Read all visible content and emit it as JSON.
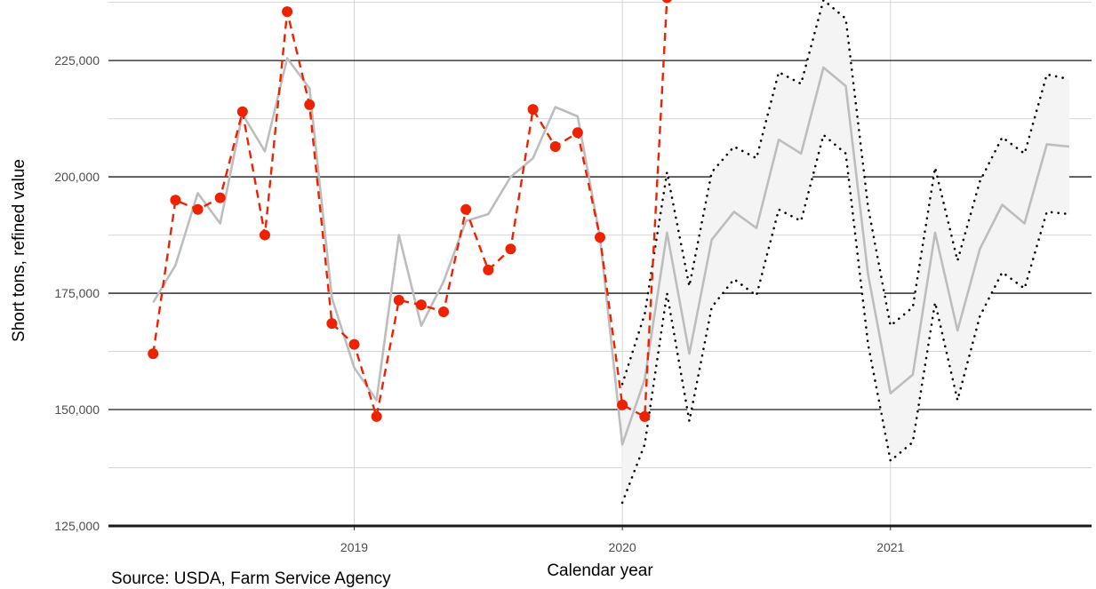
{
  "chart_data": {
    "type": "line",
    "xlabel": "Calendar year",
    "ylabel": "Short tons, refined value",
    "source": "Source: USDA, Farm Service Agency",
    "x_ticks": [
      "2019",
      "2020",
      "2021"
    ],
    "y_ticks": [
      "125,000",
      "150,000",
      "175,000",
      "200,000",
      "225,000"
    ],
    "x_range": [
      "2018-02",
      "2021-10"
    ],
    "ylim": [
      125000,
      238000
    ],
    "grid": true,
    "colors": {
      "actual": "#ee2200",
      "fitted": "#bdbdbd",
      "band": "#f4f4f4",
      "bounds": "#000000",
      "grid_major": "#1a1a1a",
      "grid_minor": "#d6d6d6"
    },
    "series": [
      {
        "role": "actual",
        "style": "dashed-red-points",
        "x": [
          "2018-04",
          "2018-05",
          "2018-06",
          "2018-07",
          "2018-08",
          "2018-09",
          "2018-10",
          "2018-11",
          "2018-12",
          "2019-01",
          "2019-02",
          "2019-03",
          "2019-04",
          "2019-05",
          "2019-06",
          "2019-07",
          "2019-08",
          "2019-09",
          "2019-10",
          "2019-11",
          "2019-12",
          "2020-01",
          "2020-02",
          "2020-03"
        ],
        "y": [
          162000,
          195000,
          193000,
          195500,
          214000,
          187500,
          235500,
          215500,
          168500,
          164000,
          148500,
          173500,
          172500,
          171000,
          193000,
          180000,
          184500,
          214500,
          206500,
          209500,
          187000,
          151000,
          148500,
          238500
        ]
      },
      {
        "role": "fitted",
        "style": "solid-gray",
        "x": [
          "2018-04",
          "2018-05",
          "2018-06",
          "2018-07",
          "2018-08",
          "2018-09",
          "2018-10",
          "2018-11",
          "2018-12",
          "2019-01",
          "2019-02",
          "2019-03",
          "2019-04",
          "2019-05",
          "2019-06",
          "2019-07",
          "2019-08",
          "2019-09",
          "2019-10",
          "2019-11",
          "2019-12",
          "2020-01",
          "2020-02",
          "2020-03",
          "2020-04",
          "2020-05",
          "2020-06",
          "2020-07",
          "2020-08",
          "2020-09",
          "2020-10",
          "2020-11",
          "2020-12",
          "2021-01",
          "2021-02",
          "2021-03",
          "2021-04",
          "2021-05",
          "2021-06",
          "2021-07",
          "2021-08",
          "2021-09"
        ],
        "y": [
          173000,
          181000,
          196500,
          190000,
          213500,
          205500,
          225500,
          219000,
          174000,
          159000,
          152000,
          187500,
          168000,
          177500,
          190500,
          192000,
          200000,
          204000,
          215000,
          213000,
          187000,
          142500,
          156500,
          188000,
          162000,
          186500,
          192500,
          189000,
          208000,
          205000,
          223500,
          219500,
          179000,
          153500,
          157500,
          188000,
          167000,
          184500,
          194000,
          190000,
          207000,
          206500
        ]
      },
      {
        "role": "upper-bound",
        "style": "dotted-black",
        "x": [
          "2020-01",
          "2020-02",
          "2020-03",
          "2020-04",
          "2020-05",
          "2020-06",
          "2020-07",
          "2020-08",
          "2020-09",
          "2020-10",
          "2020-11",
          "2020-12",
          "2021-01",
          "2021-02",
          "2021-03",
          "2021-04",
          "2021-05",
          "2021-06",
          "2021-07",
          "2021-08",
          "2021-09"
        ],
        "y": [
          155500,
          170500,
          201000,
          176500,
          201000,
          206500,
          204000,
          222500,
          220000,
          238000,
          234000,
          193500,
          168000,
          172000,
          202000,
          182000,
          199000,
          208500,
          205000,
          222000,
          221000
        ]
      },
      {
        "role": "lower-bound",
        "style": "dotted-black",
        "x": [
          "2020-01",
          "2020-02",
          "2020-03",
          "2020-04",
          "2020-05",
          "2020-06",
          "2020-07",
          "2020-08",
          "2020-09",
          "2020-10",
          "2020-11",
          "2020-12",
          "2021-01",
          "2021-02",
          "2021-03",
          "2021-04",
          "2021-05",
          "2021-06",
          "2021-07",
          "2021-08",
          "2021-09"
        ],
        "y": [
          130000,
          142500,
          175000,
          147500,
          172000,
          178000,
          174500,
          193000,
          190500,
          209000,
          205000,
          164000,
          139000,
          143000,
          173000,
          152000,
          170000,
          179500,
          176000,
          192500,
          192000
        ]
      }
    ]
  }
}
